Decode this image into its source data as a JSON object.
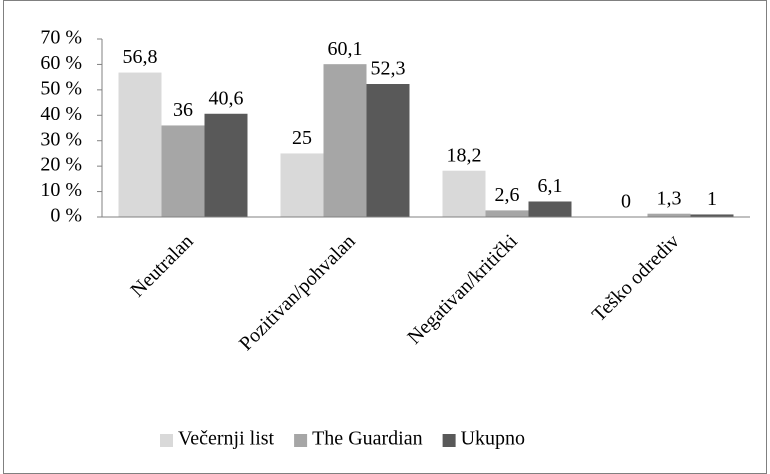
{
  "chart_data": {
    "type": "bar",
    "categories": [
      "Neutralan",
      "Pozitivan/pohvalan",
      "Negativan/kritički",
      "Teško odrediv"
    ],
    "series": [
      {
        "name": "Večernji list",
        "color": "#d9d9d9",
        "values": [
          56.8,
          25,
          18.2,
          0
        ],
        "value_labels": [
          "56,8",
          "25",
          "18,2",
          "0"
        ]
      },
      {
        "name": "The Guardian",
        "color": "#a6a6a6",
        "values": [
          36,
          60.1,
          2.6,
          1.3
        ],
        "value_labels": [
          "36",
          "60,1",
          "2,6",
          "1,3"
        ]
      },
      {
        "name": "Ukupno",
        "color": "#595959",
        "values": [
          40.6,
          52.3,
          6.1,
          1
        ],
        "value_labels": [
          "40,6",
          "52,3",
          "6,1",
          "1"
        ]
      }
    ],
    "ylim": [
      0,
      70
    ],
    "yticks": [
      {
        "value": 0,
        "label": "0 %"
      },
      {
        "value": 10,
        "label": "10 %"
      },
      {
        "value": 20,
        "label": "20 %"
      },
      {
        "value": 30,
        "label": "30 %"
      },
      {
        "value": 40,
        "label": "40 %"
      },
      {
        "value": 50,
        "label": "50 %"
      },
      {
        "value": 60,
        "label": "60 %"
      },
      {
        "value": 70,
        "label": "70 %"
      }
    ],
    "grid": false,
    "legend": "bottom"
  }
}
